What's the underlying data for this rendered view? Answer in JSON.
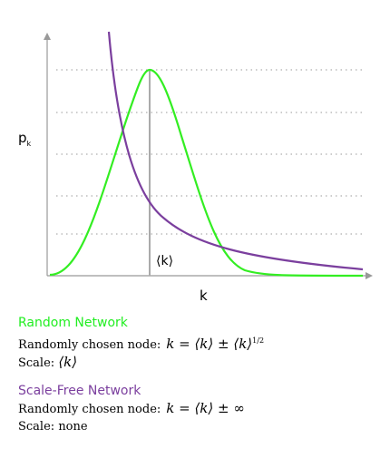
{
  "plot": {
    "y_label": {
      "base": "p",
      "subscript": "k"
    },
    "x_label": "k",
    "mean_label": "⟨k⟩"
  },
  "sections": [
    {
      "title": "Random Network",
      "line1": "Randomly chosen node:",
      "formula": "k = ⟨k⟩ ± ⟨k⟩",
      "formula_sup": "1/2",
      "scale_label": "Scale:",
      "scale_value": "⟨k⟩"
    },
    {
      "title": "Scale-Free Network",
      "line1": "Randomly chosen node:",
      "formula": "k = ⟨k⟩ ± ∞",
      "scale_label": "Scale:",
      "scale_value": "none"
    }
  ]
}
